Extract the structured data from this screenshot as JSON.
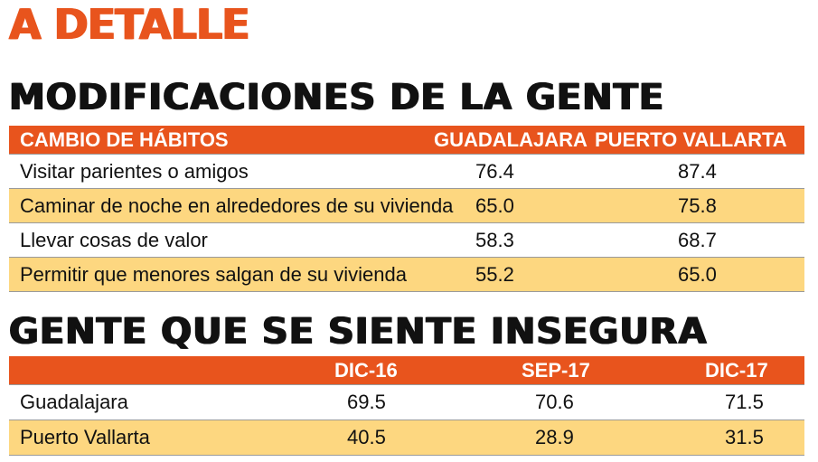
{
  "kicker": "A DETALLE",
  "chart_data": [
    {
      "type": "table",
      "title": "MODIFICACIONES DE LA GENTE",
      "columns": [
        "CAMBIO DE HÁBITOS",
        "GUADALAJARA",
        "PUERTO VALLARTA"
      ],
      "rows": [
        [
          "Visitar parientes o amigos",
          "76.4",
          "87.4"
        ],
        [
          "Caminar de noche en alrededores de su vivienda",
          "65.0",
          "75.8"
        ],
        [
          "Llevar cosas de valor",
          "58.3",
          "68.7"
        ],
        [
          "Permitir que menores salgan de su vivienda",
          "55.2",
          "65.0"
        ]
      ],
      "colors": {
        "header": "#e8541d",
        "alt_row": "#fdd780"
      }
    },
    {
      "type": "table",
      "title": "GENTE QUE SE SIENTE INSEGURA",
      "columns": [
        "",
        "DIC-16",
        "SEP-17",
        "DIC-17"
      ],
      "rows": [
        [
          "Guadalajara",
          "69.5",
          "70.6",
          "71.5"
        ],
        [
          "Puerto Vallarta",
          "40.5",
          "28.9",
          "31.5"
        ]
      ],
      "colors": {
        "header": "#e8541d",
        "alt_row": "#fdd780"
      }
    }
  ]
}
